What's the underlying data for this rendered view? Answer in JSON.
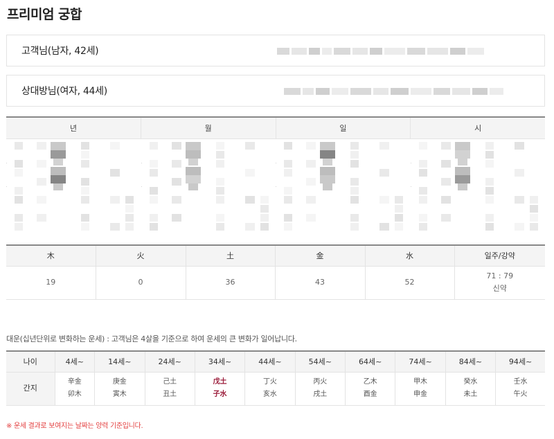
{
  "page_title": "프리미엄 궁합",
  "customer": {
    "label": "고객님(남자, 42세)"
  },
  "partner": {
    "label": "상대방님(여자, 44세)"
  },
  "saju": {
    "headers": [
      "년",
      "월",
      "일",
      "시"
    ]
  },
  "elements": {
    "headers": [
      "木",
      "火",
      "土",
      "金",
      "水",
      "일주/강약"
    ],
    "values": [
      "19",
      "0",
      "36",
      "43",
      "52"
    ],
    "ratio": "71 : 79",
    "strength": "신약"
  },
  "daeun": {
    "note": "대운(십년단위로 변화하는 운세) : 고객님은 4살을 기준으로 하여 운세의 큰 변화가 일어납니다.",
    "age_label": "나이",
    "ganji_label": "간지",
    "columns": [
      {
        "age": "4세~",
        "top": "辛金",
        "bottom": "卯木"
      },
      {
        "age": "14세~",
        "top": "庚金",
        "bottom": "寅木"
      },
      {
        "age": "24세~",
        "top": "己土",
        "bottom": "丑土"
      },
      {
        "age": "34세~",
        "top": "戊土",
        "bottom": "子水"
      },
      {
        "age": "44세~",
        "top": "丁火",
        "bottom": "亥水"
      },
      {
        "age": "54세~",
        "top": "丙火",
        "bottom": "戌土"
      },
      {
        "age": "64세~",
        "top": "乙木",
        "bottom": "酉金"
      },
      {
        "age": "74세~",
        "top": "甲木",
        "bottom": "申金"
      },
      {
        "age": "84세~",
        "top": "癸水",
        "bottom": "未土"
      },
      {
        "age": "94세~",
        "top": "壬水",
        "bottom": "午火"
      }
    ],
    "highlight_color": "#9b1d3b"
  },
  "footnote": "※ 운세 결과로 보여지는 날짜는 양력 기준입니다."
}
